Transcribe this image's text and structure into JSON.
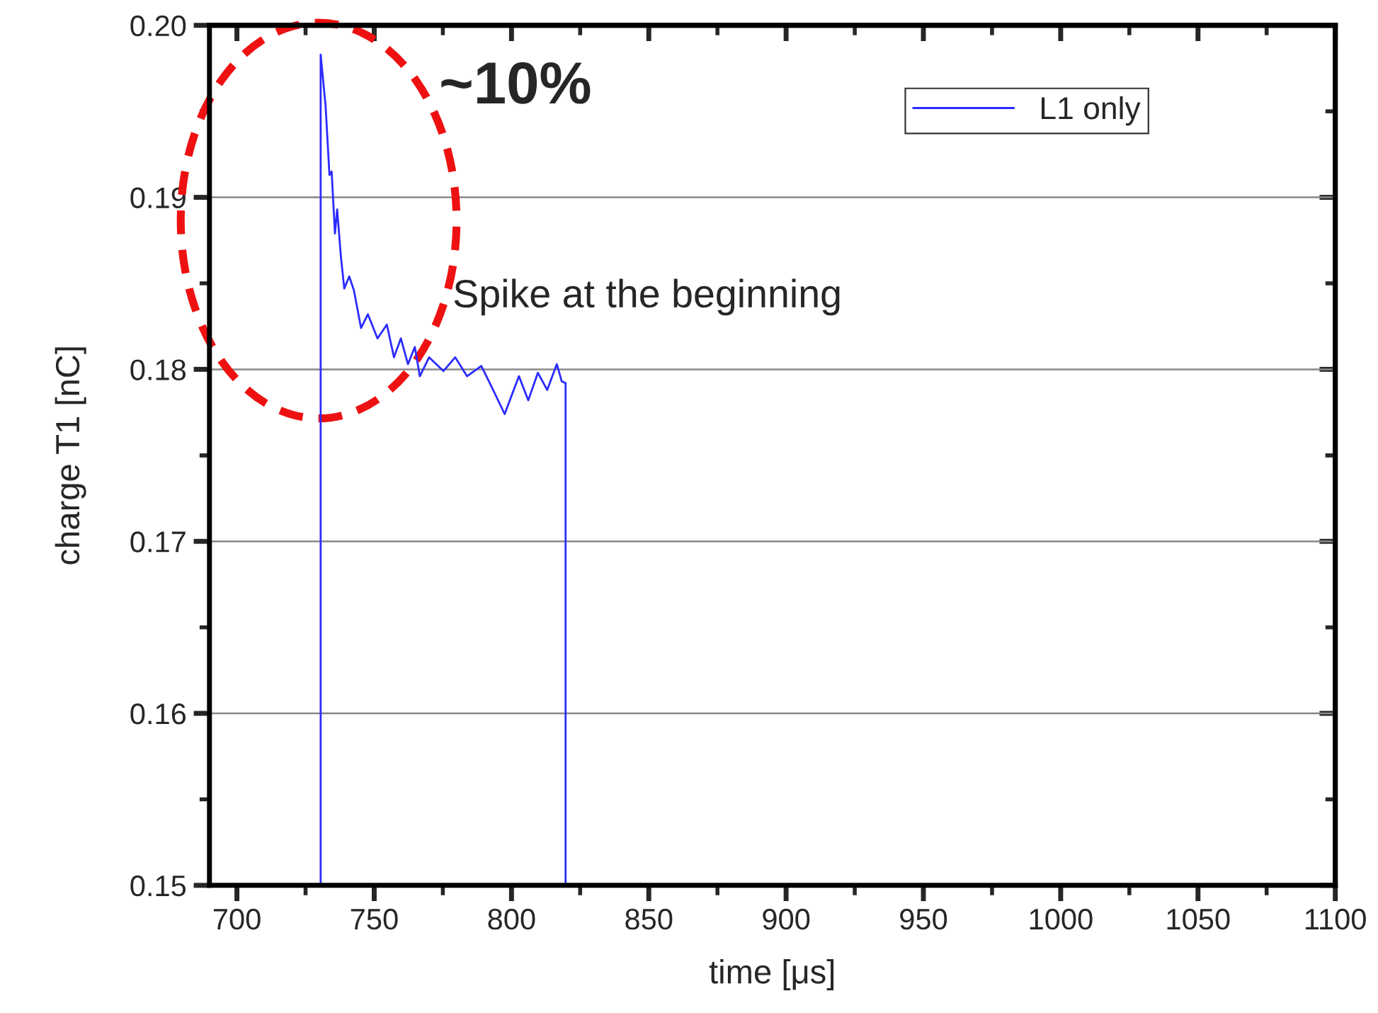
{
  "chart_data": {
    "type": "line",
    "xlabel": "time [μs]",
    "ylabel": "charge T1 [nC]",
    "annotations": [
      "~10%",
      "Spike at the beginning"
    ],
    "series": [
      {
        "name": "L1 only",
        "color": "#2b2bff",
        "x": [
          730.5,
          730.5,
          732.3,
          733.7,
          734.5,
          735.7,
          736.5,
          737.9,
          739.1,
          740.9,
          742.6,
          745.2,
          747.7,
          751.2,
          754.6,
          757.2,
          759.7,
          762.3,
          764.8,
          766.6,
          770,
          775.2,
          779.5,
          783.8,
          789,
          792.4,
          797.5,
          802.7,
          806.1,
          809.6,
          813,
          816.5,
          818.3,
          819.7,
          819.7
        ],
        "values": [
          0.15,
          0.1983,
          0.1953,
          0.1913,
          0.1915,
          0.1879,
          0.1893,
          0.1865,
          0.1847,
          0.1854,
          0.1846,
          0.1824,
          0.1832,
          0.1818,
          0.1826,
          0.1807,
          0.1818,
          0.1803,
          0.1813,
          0.1796,
          0.1807,
          0.1799,
          0.1807,
          0.1796,
          0.1802,
          0.1791,
          0.1774,
          0.1796,
          0.1782,
          0.1798,
          0.1788,
          0.1803,
          0.1793,
          0.1792,
          0.15
        ]
      }
    ],
    "xlim": [
      690,
      1100
    ],
    "xticks": [
      700,
      750,
      800,
      850,
      900,
      950,
      1000,
      1050,
      1100
    ],
    "ylim": [
      0.15,
      0.2
    ],
    "yticks": [
      0.15,
      0.16,
      0.17,
      0.18,
      0.19,
      {
        "value": 0.2,
        "label": "0.20"
      }
    ],
    "grid": "y",
    "legend": "top right",
    "line_style": "solid",
    "marker": "none"
  }
}
